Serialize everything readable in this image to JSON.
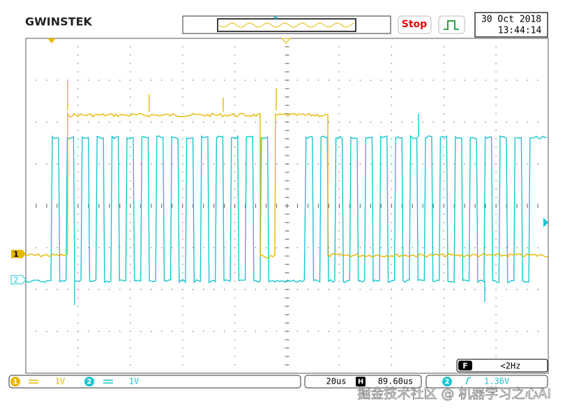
{
  "header": {
    "brand": "GWINSTEK",
    "run_state": "Stop",
    "date": "30 Oct 2018",
    "time": "13:44:14"
  },
  "channels": [
    {
      "label": "1",
      "scale": "1V"
    },
    {
      "label": "2",
      "scale": "1V"
    }
  ],
  "trigger": {
    "label": "F",
    "frequency": "<2Hz",
    "source": "2",
    "level": "1.36V"
  },
  "timebase": {
    "scale": "20us",
    "label": "H",
    "position": "89.60us"
  },
  "watermark": "掘金技术社区 @ 机器学习之心AI"
}
